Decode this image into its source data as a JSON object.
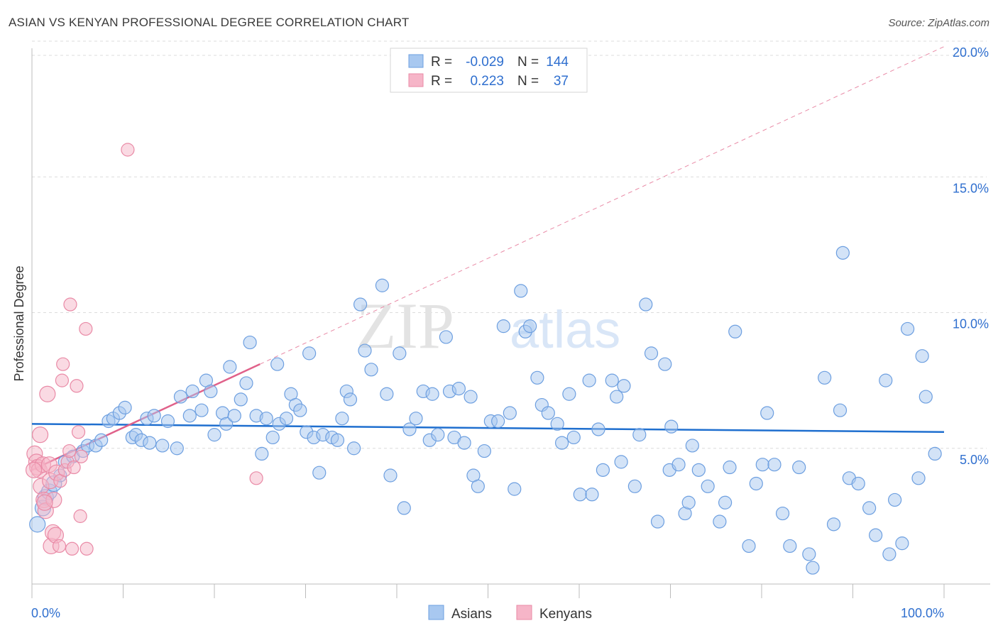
{
  "title": "ASIAN VS KENYAN PROFESSIONAL DEGREE CORRELATION CHART",
  "source": "Source: ZipAtlas.com",
  "watermark": {
    "part1": "ZIP",
    "part2": "atlas"
  },
  "colors": {
    "asian_fill": "#a8c8f0",
    "asian_stroke": "#6d9fe0",
    "asian_line": "#1f6fcf",
    "kenyan_fill": "#f6b5c8",
    "kenyan_stroke": "#e98aa6",
    "kenyan_line": "#e0618a",
    "accent_text": "#2f6fcf",
    "grid": "#dcdcdc"
  },
  "legend_stats": [
    {
      "r_label": "R =",
      "r_value": "-0.029",
      "n_label": "N =",
      "n_value": "144"
    },
    {
      "r_label": "R =",
      "r_value": "0.223",
      "n_label": "N =",
      "n_value": "37"
    }
  ],
  "chart_data": {
    "type": "scatter",
    "title": "ASIAN VS KENYAN PROFESSIONAL DEGREE CORRELATION CHART",
    "xlabel": "",
    "ylabel": "Professional Degree",
    "xlim": [
      0,
      100
    ],
    "ylim": [
      0,
      20.8
    ],
    "x_tick_labels": [
      "0.0%",
      "100.0%"
    ],
    "y_ticks": [
      5,
      10,
      15,
      20
    ],
    "y_tick_labels": [
      "5.0%",
      "10.0%",
      "15.0%",
      "20.0%"
    ],
    "grid": true,
    "legend_position": "bottom-center",
    "series": [
      {
        "name": "Asians",
        "r": -0.029,
        "n": 144,
        "trend": {
          "x": [
            0,
            100
          ],
          "y": [
            5.9,
            5.6
          ]
        },
        "points": [
          [
            0.6,
            2.2
          ],
          [
            1.2,
            2.8
          ],
          [
            1.5,
            3.2
          ],
          [
            1.9,
            3.4
          ],
          [
            2.4,
            3.7
          ],
          [
            3.1,
            4.0
          ],
          [
            3.6,
            4.5
          ],
          [
            4.5,
            4.7
          ],
          [
            5.6,
            4.9
          ],
          [
            6.1,
            5.1
          ],
          [
            7.0,
            5.1
          ],
          [
            7.6,
            5.3
          ],
          [
            8.4,
            6.0
          ],
          [
            8.9,
            6.1
          ],
          [
            9.6,
            6.3
          ],
          [
            10.2,
            6.5
          ],
          [
            11.0,
            5.4
          ],
          [
            11.4,
            5.5
          ],
          [
            12.0,
            5.3
          ],
          [
            12.6,
            6.1
          ],
          [
            12.9,
            5.2
          ],
          [
            13.4,
            6.2
          ],
          [
            14.3,
            5.1
          ],
          [
            14.9,
            6.0
          ],
          [
            15.9,
            5.0
          ],
          [
            16.3,
            6.9
          ],
          [
            17.3,
            6.2
          ],
          [
            17.6,
            7.1
          ],
          [
            18.6,
            6.4
          ],
          [
            19.1,
            7.5
          ],
          [
            19.6,
            7.1
          ],
          [
            20.0,
            5.5
          ],
          [
            20.9,
            6.3
          ],
          [
            21.3,
            5.9
          ],
          [
            21.7,
            8.0
          ],
          [
            22.2,
            6.2
          ],
          [
            22.9,
            6.8
          ],
          [
            23.5,
            7.4
          ],
          [
            23.9,
            8.9
          ],
          [
            24.6,
            6.2
          ],
          [
            25.2,
            4.8
          ],
          [
            25.7,
            6.1
          ],
          [
            26.4,
            5.4
          ],
          [
            26.9,
            8.1
          ],
          [
            27.1,
            5.9
          ],
          [
            27.9,
            6.1
          ],
          [
            28.4,
            7.0
          ],
          [
            28.9,
            6.6
          ],
          [
            29.4,
            6.4
          ],
          [
            30.1,
            5.6
          ],
          [
            30.4,
            8.5
          ],
          [
            30.9,
            5.4
          ],
          [
            31.5,
            4.1
          ],
          [
            31.9,
            5.5
          ],
          [
            32.9,
            5.4
          ],
          [
            33.5,
            5.3
          ],
          [
            34.0,
            6.1
          ],
          [
            34.5,
            7.1
          ],
          [
            34.9,
            6.8
          ],
          [
            35.3,
            5.0
          ],
          [
            36.0,
            10.3
          ],
          [
            36.5,
            8.6
          ],
          [
            37.2,
            7.9
          ],
          [
            38.4,
            11.0
          ],
          [
            38.9,
            7.0
          ],
          [
            39.3,
            4.0
          ],
          [
            40.3,
            8.5
          ],
          [
            40.8,
            2.8
          ],
          [
            41.4,
            5.7
          ],
          [
            42.1,
            6.1
          ],
          [
            42.9,
            7.1
          ],
          [
            43.6,
            5.3
          ],
          [
            43.9,
            7.0
          ],
          [
            44.5,
            5.5
          ],
          [
            45.4,
            9.1
          ],
          [
            45.8,
            7.1
          ],
          [
            46.3,
            5.4
          ],
          [
            46.8,
            7.2
          ],
          [
            47.4,
            5.2
          ],
          [
            48.1,
            6.9
          ],
          [
            48.4,
            4.0
          ],
          [
            48.9,
            3.6
          ],
          [
            49.6,
            4.9
          ],
          [
            50.3,
            6.0
          ],
          [
            51.1,
            6.0
          ],
          [
            51.7,
            9.5
          ],
          [
            52.4,
            6.3
          ],
          [
            52.9,
            3.5
          ],
          [
            53.6,
            10.8
          ],
          [
            54.1,
            9.3
          ],
          [
            54.6,
            9.5
          ],
          [
            55.4,
            7.6
          ],
          [
            55.9,
            6.6
          ],
          [
            56.6,
            6.3
          ],
          [
            57.6,
            5.9
          ],
          [
            58.1,
            5.2
          ],
          [
            58.9,
            7.0
          ],
          [
            59.4,
            5.4
          ],
          [
            60.1,
            3.3
          ],
          [
            61.1,
            7.5
          ],
          [
            61.4,
            3.3
          ],
          [
            62.1,
            5.7
          ],
          [
            62.6,
            4.2
          ],
          [
            63.6,
            7.5
          ],
          [
            64.1,
            6.9
          ],
          [
            64.6,
            4.5
          ],
          [
            64.9,
            7.3
          ],
          [
            66.1,
            3.6
          ],
          [
            66.6,
            5.5
          ],
          [
            67.3,
            10.3
          ],
          [
            67.9,
            8.5
          ],
          [
            68.6,
            2.3
          ],
          [
            69.4,
            8.1
          ],
          [
            69.9,
            4.2
          ],
          [
            70.1,
            5.8
          ],
          [
            70.9,
            4.4
          ],
          [
            71.6,
            2.6
          ],
          [
            72.0,
            3.0
          ],
          [
            72.4,
            5.1
          ],
          [
            73.1,
            4.2
          ],
          [
            74.1,
            3.6
          ],
          [
            75.4,
            2.3
          ],
          [
            76.0,
            3.0
          ],
          [
            76.5,
            4.3
          ],
          [
            77.1,
            9.3
          ],
          [
            78.6,
            1.4
          ],
          [
            79.4,
            3.7
          ],
          [
            80.1,
            4.4
          ],
          [
            80.6,
            6.3
          ],
          [
            81.4,
            4.4
          ],
          [
            82.3,
            2.6
          ],
          [
            83.1,
            1.4
          ],
          [
            84.1,
            4.3
          ],
          [
            85.6,
            0.6
          ],
          [
            86.9,
            7.6
          ],
          [
            87.9,
            2.2
          ],
          [
            88.6,
            6.4
          ],
          [
            88.9,
            12.2
          ],
          [
            89.6,
            3.9
          ],
          [
            90.6,
            3.7
          ],
          [
            91.8,
            2.8
          ],
          [
            92.5,
            1.8
          ],
          [
            93.6,
            7.5
          ],
          [
            94.0,
            1.1
          ],
          [
            94.6,
            3.1
          ],
          [
            95.4,
            1.5
          ],
          [
            96.0,
            9.4
          ],
          [
            97.2,
            3.9
          ],
          [
            98.0,
            6.9
          ],
          [
            85.2,
            1.1
          ],
          [
            97.6,
            8.4
          ],
          [
            99.0,
            4.8
          ]
        ]
      },
      {
        "name": "Kenyans",
        "r": 0.223,
        "n": 37,
        "trend": {
          "x": [
            0,
            25
          ],
          "y": [
            4.2,
            8.1
          ]
        },
        "points": [
          [
            0.3,
            4.8
          ],
          [
            0.5,
            4.5
          ],
          [
            0.6,
            4.3
          ],
          [
            0.8,
            4.2
          ],
          [
            0.9,
            5.5
          ],
          [
            1.0,
            3.6
          ],
          [
            1.2,
            4.4
          ],
          [
            1.3,
            3.1
          ],
          [
            1.5,
            2.7
          ],
          [
            1.7,
            7.0
          ],
          [
            1.9,
            4.4
          ],
          [
            2.0,
            3.8
          ],
          [
            2.1,
            1.4
          ],
          [
            2.3,
            1.9
          ],
          [
            2.4,
            3.1
          ],
          [
            2.6,
            1.8
          ],
          [
            2.7,
            4.1
          ],
          [
            3.0,
            1.4
          ],
          [
            3.1,
            3.8
          ],
          [
            3.3,
            7.5
          ],
          [
            3.4,
            8.1
          ],
          [
            3.6,
            4.2
          ],
          [
            3.9,
            4.5
          ],
          [
            4.1,
            4.9
          ],
          [
            4.2,
            10.3
          ],
          [
            4.4,
            1.3
          ],
          [
            4.6,
            4.3
          ],
          [
            4.9,
            7.3
          ],
          [
            5.1,
            5.6
          ],
          [
            5.3,
            2.5
          ],
          [
            5.4,
            4.7
          ],
          [
            5.9,
            9.4
          ],
          [
            6.0,
            1.3
          ],
          [
            10.5,
            16.0
          ],
          [
            24.6,
            3.9
          ],
          [
            0.2,
            4.2
          ],
          [
            1.4,
            3.0
          ]
        ]
      }
    ]
  }
}
